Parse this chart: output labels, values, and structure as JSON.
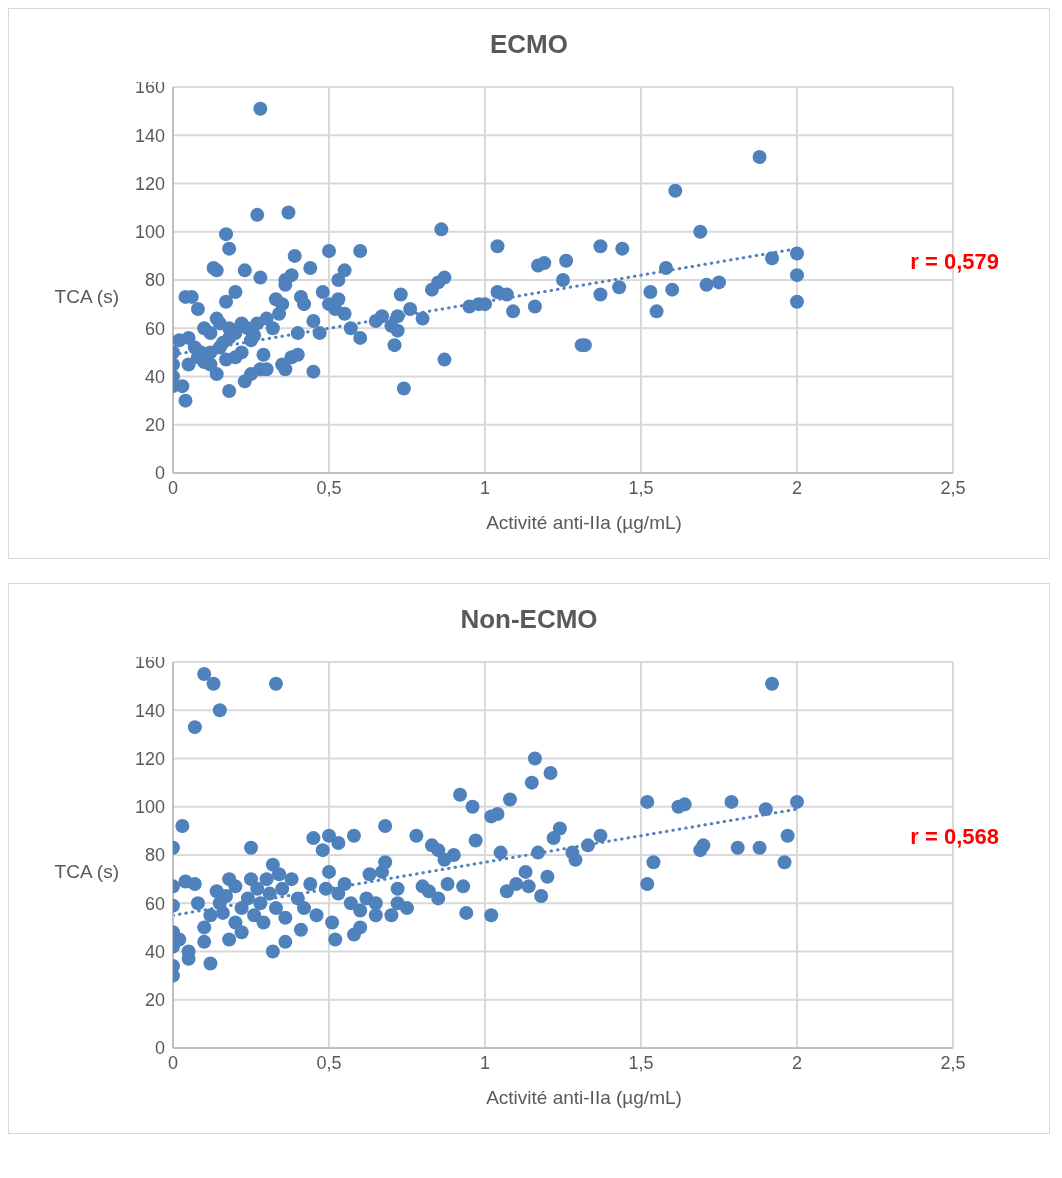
{
  "chart_data": [
    {
      "type": "scatter",
      "title": "ECMO",
      "xlabel": "Activité anti-IIa (µg/mL)",
      "ylabel": "TCA (s)",
      "xlim": [
        0,
        2.5
      ],
      "xticks": [
        0,
        {
          "value": 0.5,
          "label": "0,5"
        },
        1,
        {
          "value": 1.5,
          "label": "1,5"
        },
        2,
        {
          "value": 2.5,
          "label": "2,5"
        }
      ],
      "ylim": [
        0,
        160
      ],
      "yticks": [
        0,
        20,
        40,
        60,
        80,
        100,
        120,
        140,
        160
      ],
      "grid": true,
      "annotations": [
        "r = 0,579"
      ],
      "series": [
        {
          "marker": "circle",
          "color": "#4f81bd",
          "x": [
            0.28,
            0.27,
            0.37,
            0.17,
            0.18,
            0.13,
            0.14,
            0.23,
            0.28,
            0.39,
            0.41,
            0.44,
            0.5,
            0.6,
            0.55,
            0.53,
            0.04,
            0.06,
            0.2,
            0.17,
            0.03,
            0.04,
            0.14,
            0.18,
            0.23,
            0.25,
            0.28,
            0.3,
            0.36,
            0.45,
            0.38,
            0.4,
            0.35,
            0,
            0,
            0,
            0,
            0.02,
            0.05,
            0.08,
            0.1,
            0.12,
            0.15,
            0.2,
            0.22,
            0.25,
            0.1,
            0.12,
            0.15,
            0.18,
            0.2,
            0.22,
            0.24,
            0.27,
            0.3,
            0.32,
            0.34,
            0.35,
            0.33,
            0.36,
            0.36,
            0.38,
            0.4,
            0.42,
            0.45,
            0.47,
            0.48,
            0.5,
            0.52,
            0.53,
            0.55,
            0.57,
            0.6,
            0.08,
            0.05,
            0.14,
            0.16,
            0.18,
            0.26,
            0.29,
            0.12,
            0.17,
            0.07,
            0.09,
            0.65,
            0.67,
            0.7,
            0.71,
            0.72,
            0.72,
            0.73,
            0.74,
            0.76,
            0.8,
            0.83,
            0.85,
            0.87,
            0.86,
            0.87,
            0.95,
            0.98,
            1,
            1.04,
            1.04,
            1.07,
            1.09,
            1.16,
            1.17,
            1.19,
            1.25,
            1.26,
            1.31,
            1.32,
            1.37,
            1.37,
            1.43,
            1.44,
            1.53,
            1.55,
            1.58,
            1.6,
            1.61,
            1.69,
            1.71,
            1.75,
            1.88,
            1.92,
            2,
            2,
            2
          ],
          "values": [
            151,
            107,
            108,
            99,
            93,
            85,
            84,
            84,
            81,
            90,
            73,
            85,
            92,
            92,
            84,
            80,
            73,
            73,
            75,
            71,
            36,
            30,
            41,
            34,
            38,
            41,
            43,
            43,
            43,
            42,
            48,
            49,
            45,
            36,
            40,
            45,
            50,
            55,
            45,
            48,
            46,
            50,
            52,
            48,
            50,
            55,
            60,
            58,
            62,
            60,
            58,
            62,
            60,
            62,
            64,
            60,
            66,
            70,
            72,
            78,
            80,
            82,
            58,
            70,
            63,
            58,
            75,
            70,
            68,
            72,
            66,
            60,
            56,
            68,
            56,
            64,
            54,
            56,
            57,
            49,
            45,
            47,
            52,
            50,
            63,
            65,
            61,
            53,
            59,
            65,
            74,
            35,
            68,
            64,
            76,
            79,
            81,
            101,
            47,
            69,
            70,
            70,
            94,
            75,
            74,
            67,
            69,
            86,
            87,
            80,
            88,
            53,
            53,
            94,
            74,
            77,
            93,
            75,
            67,
            85,
            76,
            117,
            100,
            78,
            79,
            131,
            89,
            91,
            82,
            71
          ]
        },
        {
          "type": "line",
          "color": "#4f81bd",
          "line_style": "dotted",
          "x": [
            0,
            2
          ],
          "values": [
            49,
            93
          ]
        }
      ]
    },
    {
      "type": "scatter",
      "title": "Non-ECMO",
      "xlabel": "Activité anti-IIa (µg/mL)",
      "ylabel": "TCA (s)",
      "xlim": [
        0,
        2.5
      ],
      "xticks": [
        0,
        {
          "value": 0.5,
          "label": "0,5"
        },
        1,
        {
          "value": 1.5,
          "label": "1,5"
        },
        2,
        {
          "value": 2.5,
          "label": "2,5"
        }
      ],
      "ylim": [
        0,
        160
      ],
      "yticks": [
        0,
        20,
        40,
        60,
        80,
        100,
        120,
        140,
        160
      ],
      "grid": true,
      "annotations": [
        "r = 0,568"
      ],
      "series": [
        {
          "marker": "circle",
          "color": "#4f81bd",
          "x": [
            0.1,
            0.13,
            0.33,
            0.15,
            0.07,
            1.92,
            0,
            0.03,
            0,
            0,
            0,
            0,
            0,
            0,
            0.02,
            0.04,
            0.07,
            0.05,
            0.05,
            0.08,
            0.1,
            0.1,
            0.12,
            0.12,
            0.14,
            0.15,
            0.16,
            0.17,
            0.18,
            0.18,
            0.2,
            0.2,
            0.22,
            0.22,
            0.24,
            0.25,
            0.25,
            0.26,
            0.27,
            0.28,
            0.29,
            0.3,
            0.31,
            0.32,
            0.32,
            0.33,
            0.34,
            0.35,
            0.36,
            0.36,
            0.38,
            0.4,
            0.41,
            0.42,
            0.44,
            0.45,
            0.46,
            0.48,
            0.5,
            0.49,
            0.5,
            0.51,
            0.52,
            0.53,
            0.53,
            0.55,
            0.57,
            0.58,
            0.58,
            0.6,
            0.6,
            0.62,
            0.63,
            0.65,
            0.65,
            0.67,
            0.68,
            0.68,
            0.7,
            0.72,
            0.72,
            0.75,
            0.78,
            0.8,
            0.82,
            0.83,
            0.85,
            0.85,
            0.87,
            0.88,
            0.9,
            0.92,
            0.93,
            0.94,
            0.96,
            0.97,
            1.02,
            1.02,
            1.04,
            1.05,
            1.07,
            1.08,
            1.1,
            1.13,
            1.14,
            1.15,
            1.16,
            1.17,
            1.18,
            1.2,
            1.21,
            1.22,
            1.24,
            1.28,
            1.29,
            1.33,
            1.37,
            1.52,
            1.52,
            1.54,
            1.62,
            1.64,
            1.69,
            1.7,
            1.79,
            1.81,
            1.88,
            1.9,
            1.96,
            1.97,
            2
          ],
          "values": [
            155,
            151,
            151,
            140,
            133,
            151,
            83,
            92,
            67,
            59,
            48,
            42,
            34,
            30,
            45,
            69,
            68,
            40,
            37,
            60,
            50,
            44,
            35,
            55,
            65,
            60,
            56,
            63,
            70,
            45,
            52,
            67,
            58,
            48,
            62,
            83,
            70,
            55,
            66,
            60,
            52,
            70,
            64,
            76,
            40,
            58,
            72,
            66,
            54,
            44,
            70,
            62,
            49,
            58,
            68,
            87,
            55,
            82,
            88,
            66,
            73,
            52,
            45,
            85,
            64,
            68,
            60,
            88,
            47,
            50,
            57,
            62,
            72,
            60,
            55,
            73,
            92,
            77,
            55,
            60,
            66,
            58,
            88,
            67,
            65,
            84,
            82,
            62,
            78,
            68,
            80,
            105,
            67,
            56,
            100,
            86,
            55,
            96,
            97,
            81,
            65,
            103,
            68,
            73,
            67,
            110,
            120,
            81,
            63,
            71,
            114,
            87,
            91,
            81,
            78,
            84,
            88,
            102,
            68,
            77,
            100,
            101,
            82,
            84,
            102,
            83,
            83,
            99,
            77,
            88,
            102
          ]
        },
        {
          "type": "line",
          "color": "#4f81bd",
          "line_style": "dotted",
          "x": [
            0,
            2
          ],
          "values": [
            55,
            99
          ]
        }
      ]
    }
  ]
}
